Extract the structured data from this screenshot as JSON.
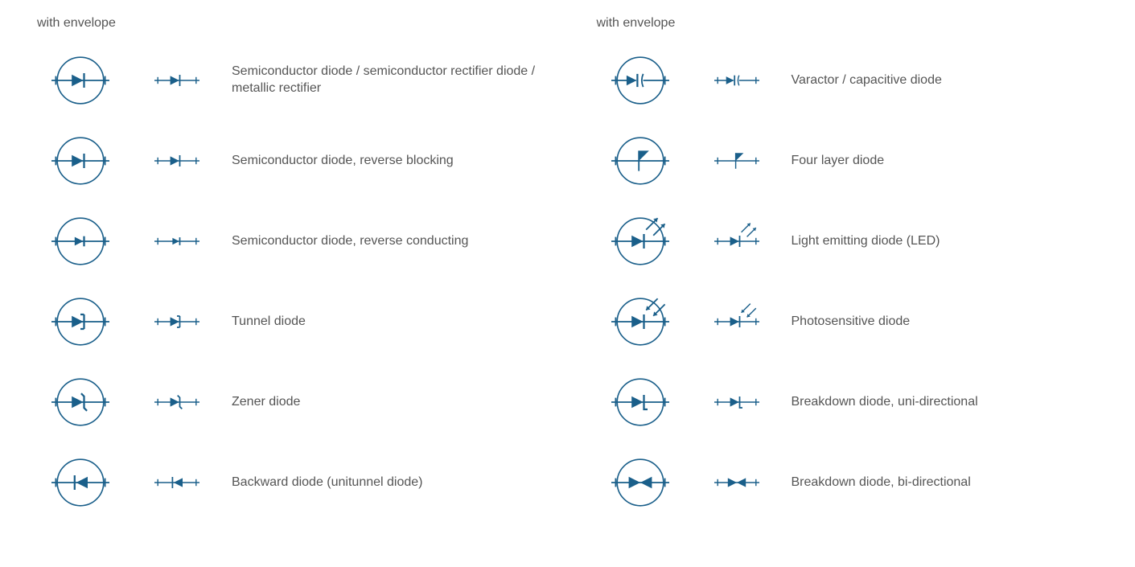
{
  "stroke_color": "#1a5f8a",
  "fill_color": "#1a5f8a",
  "text_color": "#555555",
  "background": "#ffffff",
  "font_family": "Segoe UI",
  "label_fontsize": 16,
  "envelope_radius": 32,
  "symbol_scale_plain": 0.75,
  "columns": [
    {
      "header": "with envelope",
      "rows": [
        {
          "symbol": "semiconductor",
          "label": "Semiconductor diode / semiconductor rectifier diode / metallic rectifier"
        },
        {
          "symbol": "reverse_blocking",
          "label": "Semiconductor diode, reverse blocking"
        },
        {
          "symbol": "reverse_conducting",
          "label": "Semiconductor diode, reverse conducting"
        },
        {
          "symbol": "tunnel",
          "label": "Tunnel diode"
        },
        {
          "symbol": "zener",
          "label": "Zener diode"
        },
        {
          "symbol": "backward",
          "label": "Backward diode (unitunnel diode)"
        }
      ]
    },
    {
      "header": "with envelope",
      "rows": [
        {
          "symbol": "varactor",
          "label": "Varactor / capacitive diode"
        },
        {
          "symbol": "four_layer",
          "label": "Four layer diode"
        },
        {
          "symbol": "led",
          "label": "Light emitting diode (LED)"
        },
        {
          "symbol": "photo",
          "label": "Photosensitive diode"
        },
        {
          "symbol": "breakdown_uni",
          "label": "Breakdown diode, uni-directional"
        },
        {
          "symbol": "breakdown_bi",
          "label": "Breakdown diode, bi-directional"
        }
      ]
    }
  ]
}
